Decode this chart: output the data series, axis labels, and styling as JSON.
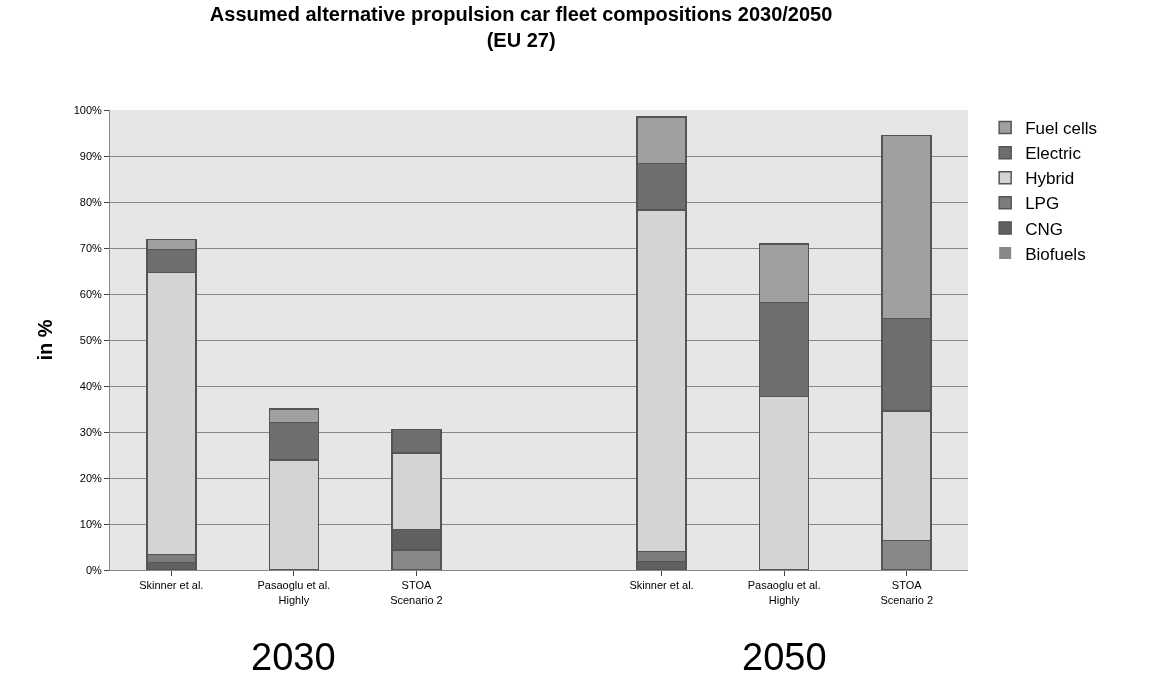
{
  "chart_data": {
    "type": "bar",
    "stacked": true,
    "title": "Assumed alternative propulsion car fleet compositions 2030/2050\n(EU 27)",
    "ylabel": "in %",
    "categories": [
      "Skinner et al.",
      "Pasaoglu et al.\nHighly",
      "STOA\nScenario 2",
      null,
      "Skinner et al.",
      "Pasaoglu et al.\nHighly",
      "STOA\nScenario 2"
    ],
    "series": [
      {
        "name": "Biofuels",
        "color": "#888888",
        "values": [
          0,
          0,
          4.4,
          null,
          0,
          0,
          6.4
        ]
      },
      {
        "name": "CNG",
        "color": "#606060",
        "values": [
          1.6,
          0,
          4.4,
          null,
          1.8,
          0,
          0
        ]
      },
      {
        "name": "LPG",
        "color": "#7c7c7c",
        "values": [
          1.8,
          0,
          0,
          null,
          2.2,
          0,
          0
        ]
      },
      {
        "name": "Hybrid",
        "color": "#d4d4d4",
        "values": [
          61.3,
          23.9,
          16.6,
          null,
          74.3,
          37.7,
          28.2
        ]
      },
      {
        "name": "Electric",
        "color": "#6e6e6e",
        "values": [
          5,
          8.2,
          5.1,
          null,
          10.1,
          20.4,
          20.1
        ]
      },
      {
        "name": "Fuel cells",
        "color": "#a0a0a0",
        "values": [
          2.1,
          2.9,
          0,
          null,
          10.1,
          12.8,
          39.8
        ]
      }
    ],
    "ylim": [
      0,
      100
    ],
    "yticks": [
      {
        "value": 0,
        "label": "0%"
      },
      {
        "value": 10,
        "label": "10%"
      },
      {
        "value": 20,
        "label": "20%"
      },
      {
        "value": 30,
        "label": "30%"
      },
      {
        "value": 40,
        "label": "40%"
      },
      {
        "value": 50,
        "label": "50%"
      },
      {
        "value": 60,
        "label": "60%"
      },
      {
        "value": 70,
        "label": "70%"
      },
      {
        "value": 80,
        "label": "80%"
      },
      {
        "value": 90,
        "label": "90%"
      },
      {
        "value": 100,
        "label": "100%"
      }
    ],
    "grid": "y",
    "legend": "right",
    "annotations": [
      "2030",
      "2050"
    ]
  }
}
